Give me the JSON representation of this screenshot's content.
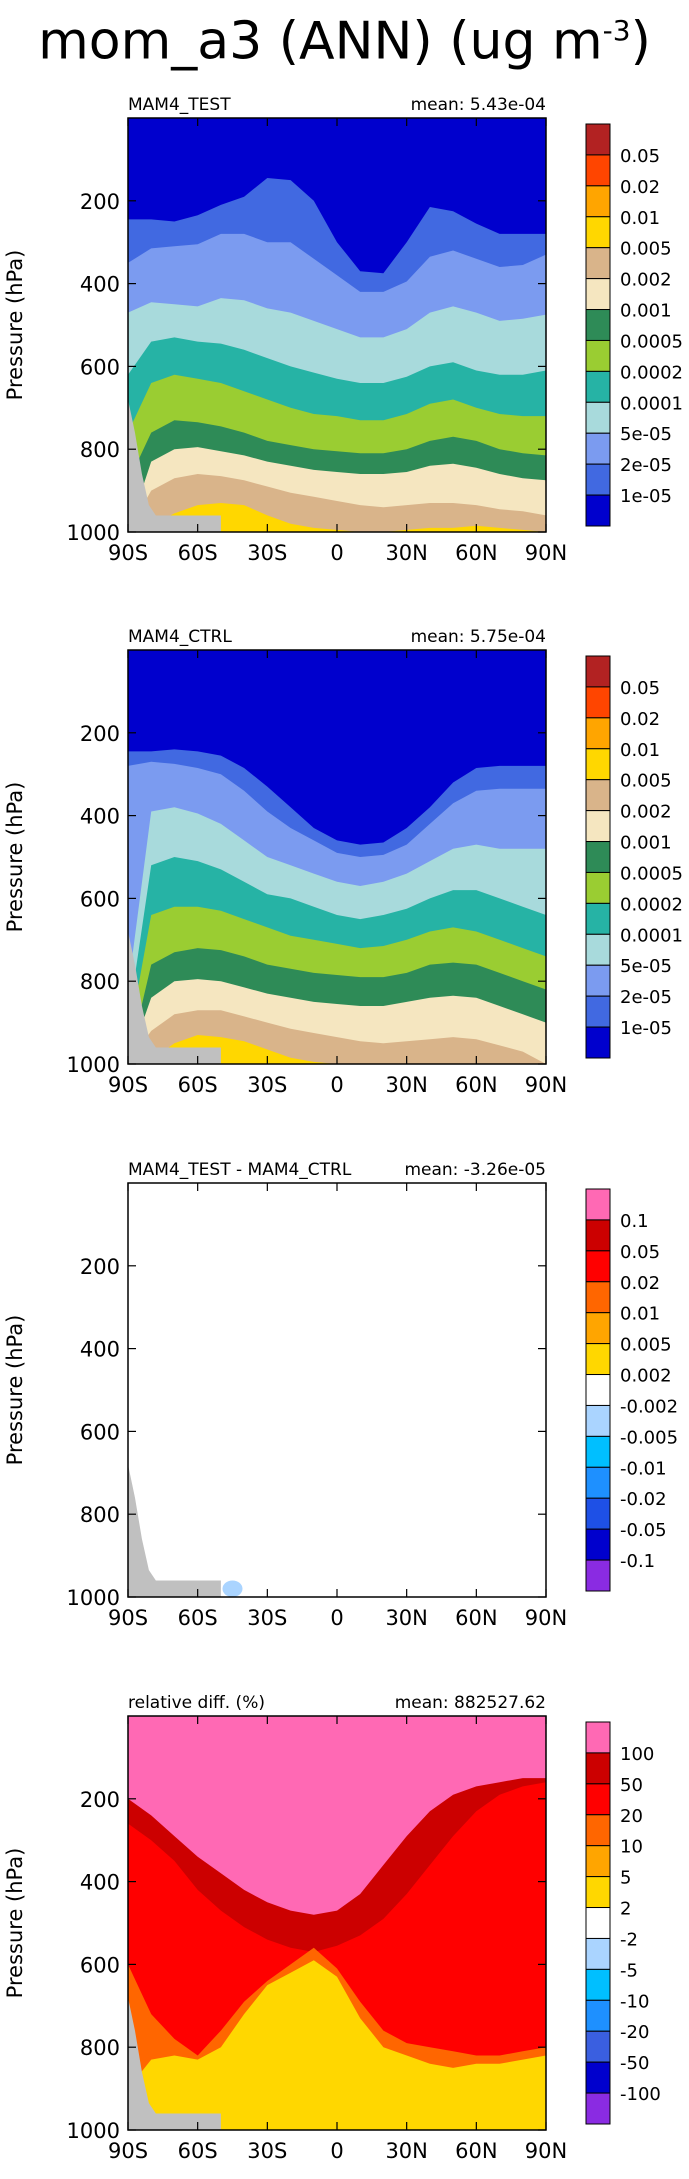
{
  "figure": {
    "title_main": "mom_a3 (ANN) (ug m",
    "title_exp": "-3",
    "title_close": ")"
  },
  "axes": {
    "ylabel": "Pressure (hPa)",
    "xticks": [
      "90S",
      "60S",
      "30S",
      "0",
      "30N",
      "60N",
      "90N"
    ],
    "yticks": [
      "200",
      "400",
      "600",
      "800",
      "1000"
    ]
  },
  "chart_data": [
    {
      "type": "heatmap",
      "panel_label": "MAM4_TEST",
      "stat": "mean: 5.43e-04",
      "ylabel": "Pressure (hPa)",
      "x": [
        "90S",
        "60S",
        "30S",
        "0",
        "30N",
        "60N",
        "90N"
      ],
      "y": [
        200,
        400,
        600,
        800,
        1000
      ],
      "levels": [
        "1e-05",
        "2e-05",
        "5e-05",
        "0.0001",
        "0.0002",
        "0.0005",
        "0.001",
        "0.002",
        "0.005",
        "0.01",
        "0.02",
        "0.05"
      ],
      "colors": [
        "#0000cd",
        "#4169e1",
        "#7b9bf0",
        "#a8dadc",
        "#26b3a5",
        "#9acd32",
        "#2e8b57",
        "#f5e6c0",
        "#d9b48a",
        "#ffd700",
        "#ffa500",
        "#ff4500",
        "#b22222"
      ],
      "ylim": [
        1000,
        0
      ],
      "profile_bands": [
        {
          "level": "1e-05",
          "pressure": [
            245,
            245,
            250,
            235,
            210,
            190,
            145,
            150,
            200,
            300,
            370,
            375,
            300,
            215,
            225,
            255,
            280,
            280,
            280
          ]
        },
        {
          "level": "2e-05",
          "pressure": [
            350,
            315,
            310,
            305,
            280,
            280,
            300,
            300,
            340,
            380,
            420,
            420,
            395,
            335,
            320,
            340,
            360,
            355,
            330
          ]
        },
        {
          "level": "5e-05",
          "pressure": [
            470,
            445,
            450,
            455,
            435,
            440,
            460,
            470,
            490,
            510,
            530,
            530,
            510,
            470,
            455,
            470,
            490,
            485,
            475
          ]
        },
        {
          "level": "0.0001",
          "pressure": [
            620,
            540,
            530,
            540,
            545,
            560,
            580,
            600,
            615,
            630,
            640,
            640,
            625,
            600,
            590,
            610,
            620,
            620,
            610
          ]
        },
        {
          "level": "0.0002",
          "pressure": [
            760,
            640,
            620,
            630,
            640,
            660,
            680,
            700,
            715,
            720,
            730,
            730,
            715,
            690,
            680,
            700,
            715,
            720,
            720
          ]
        },
        {
          "level": "0.0005",
          "pressure": [
            880,
            760,
            730,
            735,
            745,
            760,
            780,
            790,
            800,
            805,
            810,
            810,
            800,
            780,
            770,
            780,
            800,
            810,
            815
          ]
        },
        {
          "level": "0.001",
          "pressure": [
            1000,
            830,
            800,
            795,
            805,
            815,
            830,
            840,
            850,
            855,
            860,
            860,
            855,
            840,
            835,
            845,
            860,
            870,
            875
          ]
        },
        {
          "level": "0.002",
          "pressure": [
            1000,
            900,
            870,
            860,
            865,
            875,
            890,
            905,
            915,
            925,
            935,
            940,
            935,
            930,
            930,
            935,
            945,
            950,
            960
          ]
        },
        {
          "level": "0.005",
          "pressure": [
            1000,
            985,
            955,
            935,
            930,
            935,
            960,
            980,
            990,
            995,
            1000,
            1000,
            995,
            990,
            990,
            985,
            990,
            995,
            1000
          ]
        }
      ]
    },
    {
      "type": "heatmap",
      "panel_label": "MAM4_CTRL",
      "stat": "mean: 5.75e-04",
      "ylabel": "Pressure (hPa)",
      "x": [
        "90S",
        "60S",
        "30S",
        "0",
        "30N",
        "60N",
        "90N"
      ],
      "y": [
        200,
        400,
        600,
        800,
        1000
      ],
      "levels": [
        "1e-05",
        "2e-05",
        "5e-05",
        "0.0001",
        "0.0002",
        "0.0005",
        "0.001",
        "0.002",
        "0.005",
        "0.01",
        "0.02",
        "0.05"
      ],
      "colors": [
        "#0000cd",
        "#4169e1",
        "#7b9bf0",
        "#a8dadc",
        "#26b3a5",
        "#9acd32",
        "#2e8b57",
        "#f5e6c0",
        "#d9b48a",
        "#ffd700",
        "#ffa500",
        "#ff4500",
        "#b22222"
      ],
      "ylim": [
        1000,
        0
      ],
      "profile_bands": [
        {
          "level": "1e-05",
          "pressure": [
            245,
            245,
            240,
            245,
            255,
            285,
            330,
            380,
            430,
            460,
            470,
            465,
            430,
            380,
            320,
            285,
            280,
            280,
            280
          ]
        },
        {
          "level": "2e-05",
          "pressure": [
            280,
            270,
            275,
            285,
            300,
            340,
            390,
            430,
            460,
            490,
            500,
            495,
            470,
            420,
            370,
            340,
            335,
            335,
            335
          ]
        },
        {
          "level": "5e-05",
          "pressure": [
            820,
            390,
            380,
            395,
            420,
            460,
            500,
            520,
            540,
            560,
            570,
            560,
            540,
            510,
            480,
            470,
            480,
            480,
            480
          ]
        },
        {
          "level": "0.0001",
          "pressure": [
            900,
            520,
            500,
            510,
            530,
            560,
            590,
            600,
            620,
            640,
            650,
            640,
            625,
            600,
            580,
            580,
            600,
            620,
            640
          ]
        },
        {
          "level": "0.0002",
          "pressure": [
            950,
            640,
            620,
            620,
            630,
            650,
            670,
            690,
            700,
            710,
            720,
            715,
            700,
            680,
            670,
            680,
            700,
            720,
            740
          ]
        },
        {
          "level": "0.0005",
          "pressure": [
            1000,
            760,
            730,
            720,
            725,
            740,
            760,
            770,
            780,
            785,
            790,
            790,
            780,
            760,
            755,
            760,
            780,
            800,
            820
          ]
        },
        {
          "level": "0.001",
          "pressure": [
            1000,
            840,
            800,
            795,
            800,
            815,
            830,
            840,
            850,
            855,
            860,
            860,
            850,
            840,
            835,
            840,
            860,
            880,
            900
          ]
        },
        {
          "level": "0.002",
          "pressure": [
            1000,
            920,
            880,
            870,
            870,
            885,
            900,
            915,
            925,
            935,
            945,
            950,
            945,
            940,
            935,
            940,
            955,
            970,
            1000
          ]
        },
        {
          "level": "0.005",
          "pressure": [
            1000,
            990,
            950,
            930,
            935,
            945,
            965,
            985,
            995,
            1000,
            1000,
            1000,
            1000,
            1000,
            1000,
            1000,
            1000,
            1000,
            1000
          ]
        }
      ]
    },
    {
      "type": "heatmap",
      "panel_label": "MAM4_TEST - MAM4_CTRL",
      "stat": "mean: -3.26e-05",
      "ylabel": "Pressure (hPa)",
      "x": [
        "90S",
        "60S",
        "30S",
        "0",
        "30N",
        "60N",
        "90N"
      ],
      "y": [
        200,
        400,
        600,
        800,
        1000
      ],
      "levels": [
        "-0.1",
        "-0.05",
        "-0.02",
        "-0.01",
        "-0.005",
        "-0.002",
        "0.002",
        "0.005",
        "0.01",
        "0.02",
        "0.05",
        "0.1"
      ],
      "colors": [
        "#8a2be2",
        "#0000cd",
        "#1e50e6",
        "#1e90ff",
        "#00bfff",
        "#aad4ff",
        "#ffffff",
        "#ffd700",
        "#ffa500",
        "#ff6600",
        "#ff0000",
        "#cc0000",
        "#ff69b4"
      ],
      "ylim": [
        1000,
        0
      ],
      "note_features": [
        {
          "level": "-0.002",
          "lat": -45,
          "pressure": [
            960,
            1000
          ]
        }
      ]
    },
    {
      "type": "heatmap",
      "panel_label": "relative diff. (%)",
      "stat": "mean: 882527.62",
      "ylabel": "Pressure (hPa)",
      "x": [
        "90S",
        "60S",
        "30S",
        "0",
        "30N",
        "60N",
        "90N"
      ],
      "y": [
        200,
        400,
        600,
        800,
        1000
      ],
      "levels": [
        "-100",
        "-50",
        "-20",
        "-10",
        "-5",
        "-2",
        "2",
        "5",
        "10",
        "20",
        "50",
        "100"
      ],
      "colors": [
        "#8a2be2",
        "#0000cd",
        "#3a5fe0",
        "#1e90ff",
        "#00bfff",
        "#aad4ff",
        "#ffffff",
        "#ffd700",
        "#ffa500",
        "#ff6600",
        "#ff0000",
        "#cc0000",
        "#ff69b4"
      ],
      "ylim": [
        1000,
        0
      ],
      "profile_bands": [
        {
          "level": "100",
          "pressure": [
            200,
            240,
            290,
            340,
            380,
            420,
            450,
            470,
            480,
            470,
            430,
            360,
            290,
            230,
            190,
            170,
            160,
            150,
            150
          ]
        },
        {
          "level": "50",
          "pressure": [
            260,
            300,
            350,
            420,
            470,
            510,
            540,
            560,
            570,
            555,
            530,
            490,
            430,
            360,
            290,
            230,
            190,
            170,
            160
          ]
        },
        {
          "level": "20",
          "pressure": [
            600,
            720,
            780,
            820,
            760,
            690,
            640,
            600,
            560,
            610,
            690,
            760,
            790,
            800,
            810,
            820,
            820,
            810,
            800
          ]
        },
        {
          "level": "5",
          "pressure": [
            900,
            830,
            820,
            830,
            800,
            720,
            650,
            620,
            590,
            630,
            730,
            800,
            820,
            840,
            850,
            840,
            840,
            830,
            820
          ]
        }
      ]
    }
  ]
}
